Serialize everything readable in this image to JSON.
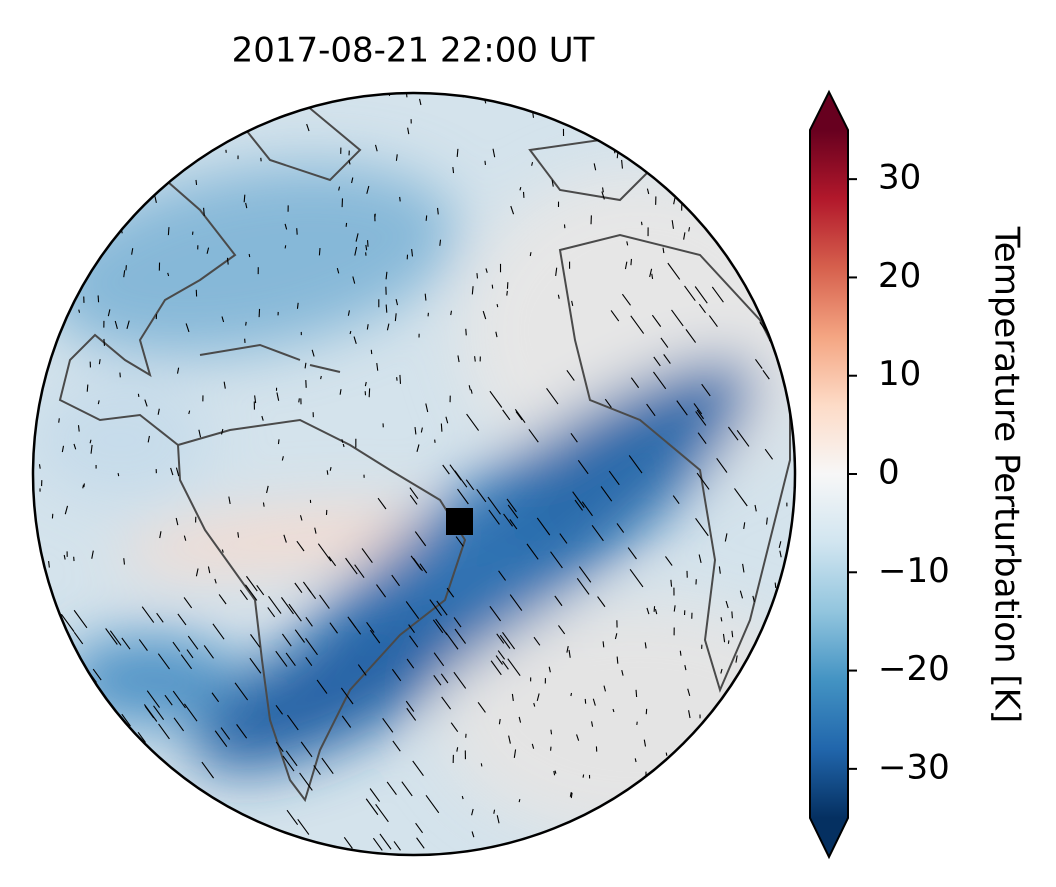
{
  "chart_data": {
    "type": "map",
    "title": "2017-08-21  22:00 UT",
    "colorbar": {
      "label": "Temperature Perturbation [K]",
      "lim": [
        -35,
        35
      ],
      "ticks": [
        {
          "value": -30,
          "label": "−30"
        },
        {
          "value": -20,
          "label": "−20"
        },
        {
          "value": -10,
          "label": "−10"
        },
        0,
        10,
        20,
        30
      ]
    }
  }
}
